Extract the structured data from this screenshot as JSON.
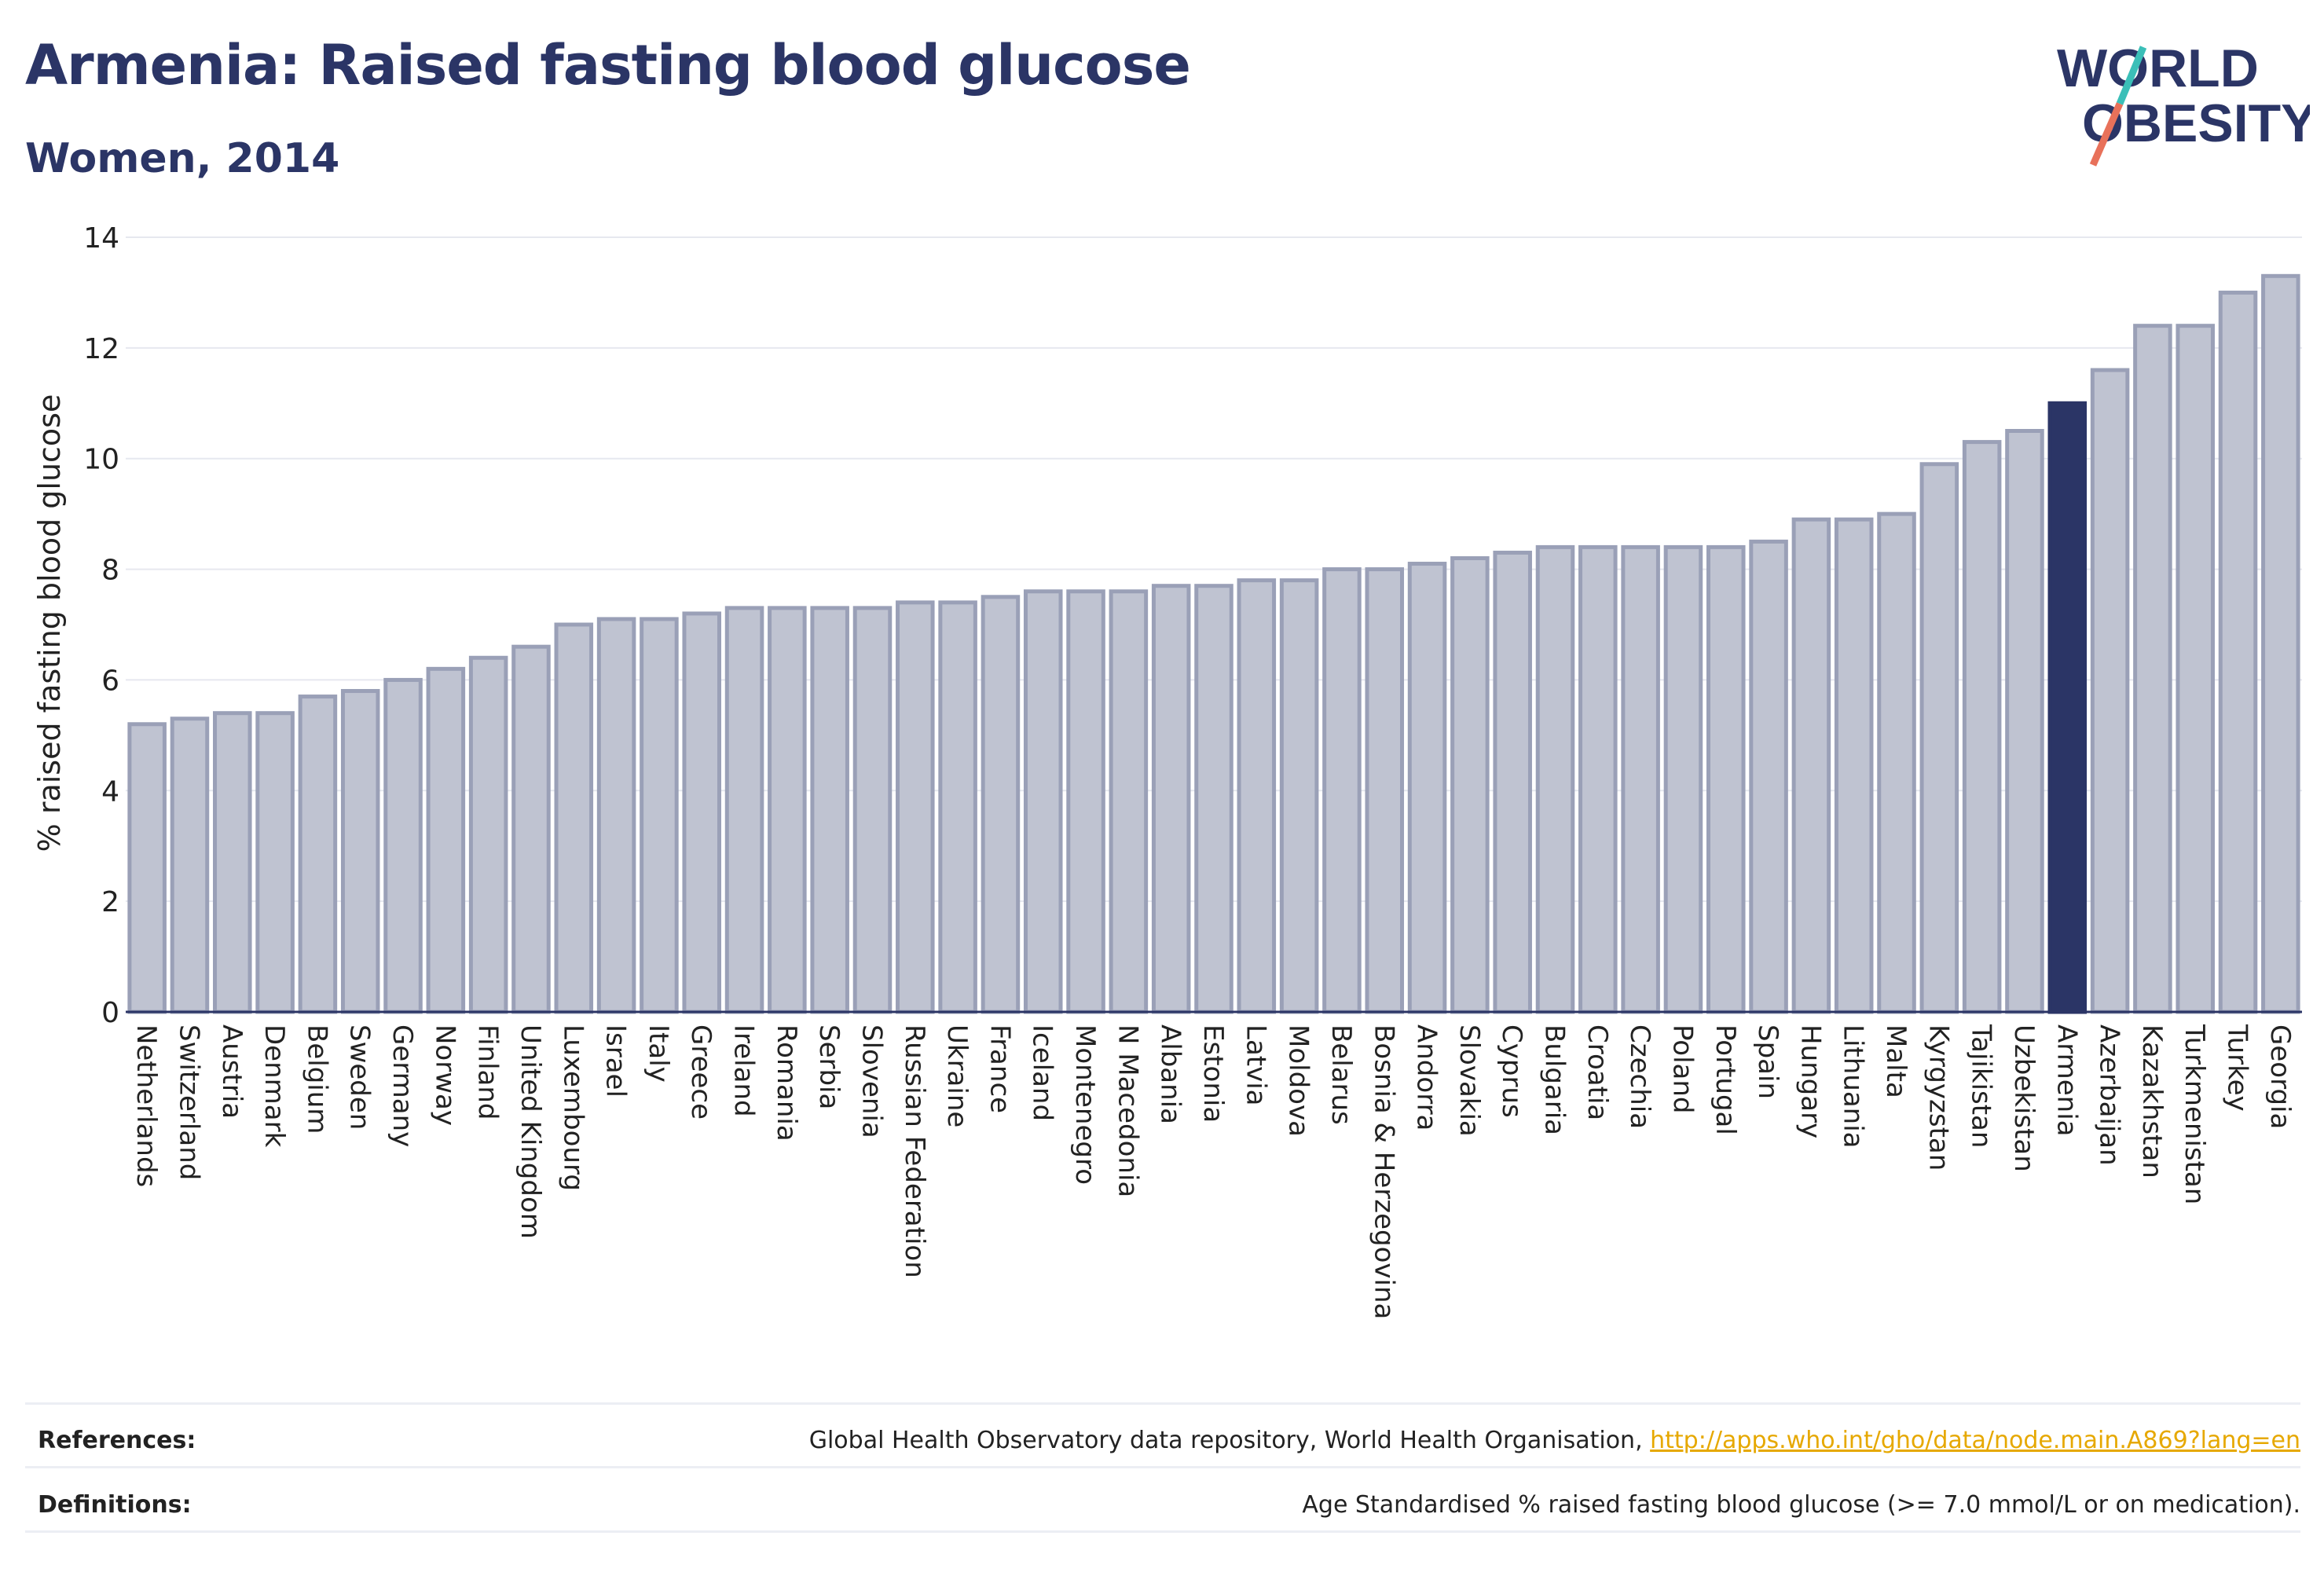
{
  "header": {
    "title": "Armenia: Raised fasting blood glucose",
    "subtitle": "Women, 2014"
  },
  "logo": {
    "line1": "WORLD",
    "line2": "OBESITY",
    "text_color": "#2b3566",
    "slash_colors": [
      "#e8715a",
      "#3bbfb8"
    ]
  },
  "chart_data": {
    "type": "bar",
    "title": "Armenia: Raised fasting blood glucose",
    "subtitle": "Women, 2014",
    "xlabel": "",
    "ylabel": "% raised fasting blood glucose",
    "ylim": [
      0,
      14
    ],
    "yticks": [
      0,
      2,
      4,
      6,
      8,
      10,
      12,
      14
    ],
    "grid": true,
    "highlight": "Armenia",
    "colors": {
      "default_bar": "#bfc3d1",
      "default_edge": "#9aa0b7",
      "highlight_bar": "#2b3566",
      "axis": "#2b3566",
      "grid": "#e6e8ef"
    },
    "categories": [
      "Netherlands",
      "Switzerland",
      "Austria",
      "Denmark",
      "Belgium",
      "Sweden",
      "Germany",
      "Norway",
      "Finland",
      "United Kingdom",
      "Luxembourg",
      "Israel",
      "Italy",
      "Greece",
      "Ireland",
      "Romania",
      "Serbia",
      "Slovenia",
      "Russian Federation",
      "Ukraine",
      "France",
      "Iceland",
      "Montenegro",
      "N Macedonia",
      "Albania",
      "Estonia",
      "Latvia",
      "Moldova",
      "Belarus",
      "Bosnia & Herzegovina",
      "Andorra",
      "Slovakia",
      "Cyprus",
      "Bulgaria",
      "Croatia",
      "Czechia",
      "Poland",
      "Portugal",
      "Spain",
      "Hungary",
      "Lithuania",
      "Malta",
      "Kyrgyzstan",
      "Tajikistan",
      "Uzbekistan",
      "Armenia",
      "Azerbaijan",
      "Kazakhstan",
      "Turkmenistan",
      "Turkey",
      "Georgia"
    ],
    "values": [
      5.2,
      5.3,
      5.4,
      5.4,
      5.7,
      5.8,
      6.0,
      6.2,
      6.4,
      6.6,
      7.0,
      7.1,
      7.1,
      7.2,
      7.3,
      7.3,
      7.3,
      7.3,
      7.4,
      7.4,
      7.5,
      7.6,
      7.6,
      7.6,
      7.7,
      7.7,
      7.8,
      7.8,
      8.0,
      8.0,
      8.1,
      8.2,
      8.3,
      8.4,
      8.4,
      8.4,
      8.4,
      8.4,
      8.5,
      8.9,
      8.9,
      9.0,
      9.9,
      10.3,
      10.5,
      11.0,
      11.6,
      12.4,
      12.4,
      13.0,
      13.3
    ]
  },
  "footer": {
    "references_label": "References:",
    "references_text": "Global Health Observatory data repository, World Health Organisation, ",
    "references_link": "http://apps.who.int/gho/data/node.main.A869?lang=en",
    "definitions_label": "Definitions:",
    "definitions_text": "Age Standardised % raised fasting blood glucose (>= 7.0 mmol/L or on medication)."
  }
}
